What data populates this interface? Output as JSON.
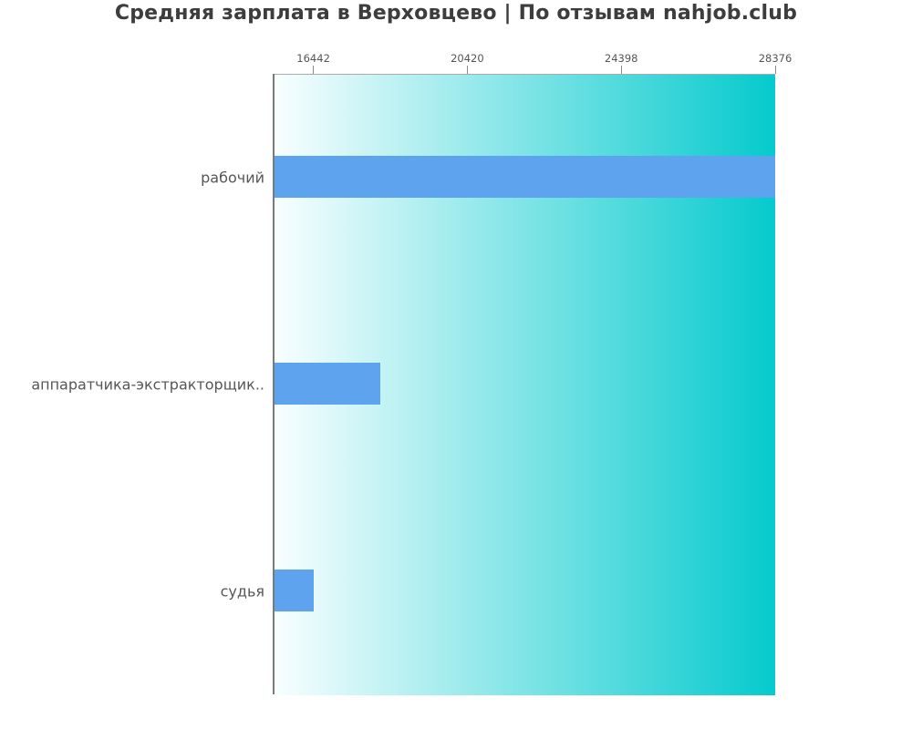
{
  "title": "Средняя зарплата в Верховцево | По отзывам nahjob.club",
  "colors": {
    "bar": "#5ea3ee",
    "gradient_start": "#f9feff",
    "gradient_end": "#05cacd",
    "axis_line": "#7a7a7a",
    "plot_top_border": "#ababab",
    "tick_mark": "#8c8c8c",
    "tick_label": "#555555",
    "category_label": "#565656",
    "title_color": "#3d3d3d",
    "background": "#ffffff"
  },
  "chart_data": {
    "type": "bar",
    "orientation": "horizontal",
    "title": "Средняя зарплата в Верховцево | По отзывам nahjob.club",
    "xlabel": "",
    "ylabel": "",
    "categories": [
      "рабочий",
      "аппаратчика-экстракторщик..",
      "судья"
    ],
    "values": [
      28376,
      18170,
      16442
    ],
    "xlim": [
      15438,
      28376
    ],
    "xticks": [
      16442,
      20420,
      24398,
      28376
    ],
    "x_axis_position": "top",
    "grid": false,
    "legend": false,
    "background_gradient": "horizontal white to cyan"
  }
}
